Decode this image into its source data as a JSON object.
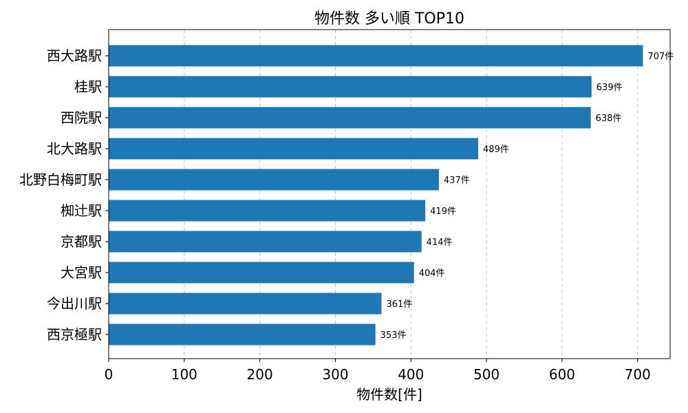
{
  "chart_data": {
    "type": "bar",
    "orientation": "horizontal",
    "title": "物件数 多い順 TOP10",
    "xlabel": "物件数[件]",
    "ylabel": "",
    "categories": [
      "西大路駅",
      "桂駅",
      "西院駅",
      "北大路駅",
      "北野白梅町駅",
      "椥辻駅",
      "京都駅",
      "大宮駅",
      "今出川駅",
      "西京極駅"
    ],
    "values": [
      707,
      639,
      638,
      489,
      437,
      419,
      414,
      404,
      361,
      353
    ],
    "data_labels": [
      "707件",
      "639件",
      "638件",
      "489件",
      "437件",
      "419件",
      "414件",
      "404件",
      "361件",
      "353件"
    ],
    "xlim": [
      0,
      743
    ],
    "xticks": [
      0,
      100,
      200,
      300,
      400,
      500,
      600,
      700
    ],
    "xtick_labels": [
      "0",
      "100",
      "200",
      "300",
      "400",
      "500",
      "600",
      "700"
    ],
    "grid": "x-dashed",
    "bar_color": "#1f77b4"
  }
}
